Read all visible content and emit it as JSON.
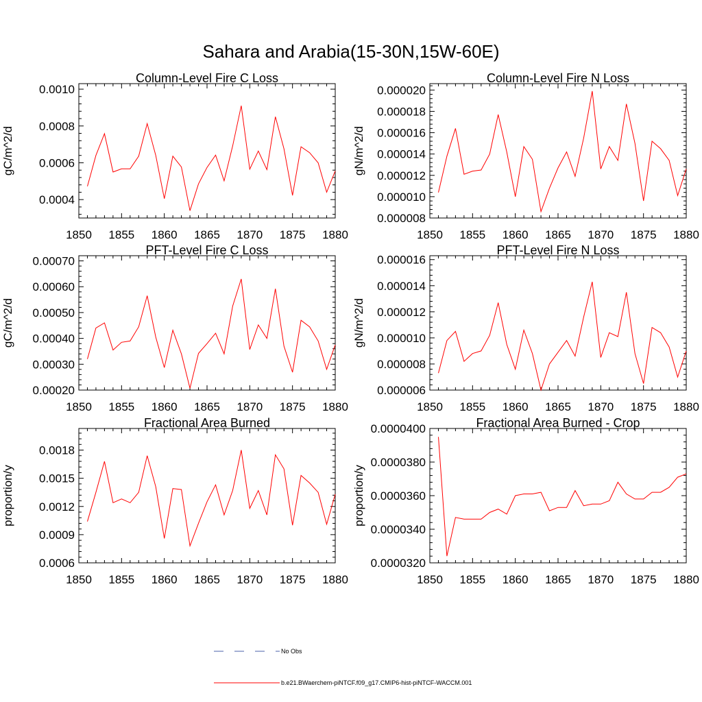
{
  "figure": {
    "title": "Sahara and Arabia(15-30N,15W-60E)"
  },
  "legend": {
    "obs_label": "No Obs",
    "obs_color": "#4a5fa8",
    "model_label": "b.e21.BWaerchem-piNTCF.f09_g17.CMIP6-hist-piNTCF-WACCM.001",
    "model_color": "#ff0000"
  },
  "chart_data": [
    {
      "type": "line",
      "title": "Column-Level Fire C Loss",
      "xlabel": "",
      "ylabel": "gC/m^2/d",
      "xlim": [
        1850,
        1880
      ],
      "ylim": [
        0.0003,
        0.00103
      ],
      "x_ticks": [
        1850,
        1855,
        1860,
        1865,
        1870,
        1875,
        1880
      ],
      "x_tick_labels": [
        "1850",
        "1855",
        "1860",
        "1865",
        "1870",
        "1875",
        "1880"
      ],
      "y_ticks": [
        0.0004,
        0.0006,
        0.0008,
        0.001
      ],
      "y_tick_labels": [
        "0.0004",
        "0.0006",
        "0.0008",
        "0.0010"
      ],
      "grid": false,
      "x": [
        1851,
        1852,
        1853,
        1854,
        1855,
        1856,
        1857,
        1858,
        1859,
        1860,
        1861,
        1862,
        1863,
        1864,
        1865,
        1866,
        1867,
        1868,
        1869,
        1870,
        1871,
        1872,
        1873,
        1874,
        1875,
        1876,
        1877,
        1878,
        1879,
        1880
      ],
      "series": [
        {
          "color": "#ff0000",
          "values": [
            0.000472,
            0.00064,
            0.000758,
            0.00055,
            0.000567,
            0.000567,
            0.000636,
            0.000813,
            0.00064,
            0.000405,
            0.000636,
            0.000577,
            0.00034,
            0.000485,
            0.000575,
            0.000642,
            0.000502,
            0.000692,
            0.00091,
            0.000565,
            0.000664,
            0.000563,
            0.00085,
            0.000676,
            0.000423,
            0.000687,
            0.000655,
            0.0006,
            0.00044,
            0.000556
          ]
        }
      ]
    },
    {
      "type": "line",
      "title": "Column-Level Fire N Loss",
      "xlabel": "",
      "ylabel": "gN/m^2/d",
      "xlim": [
        1850,
        1880
      ],
      "ylim": [
        8e-06,
        2.06e-05
      ],
      "x_ticks": [
        1850,
        1855,
        1860,
        1865,
        1870,
        1875,
        1880
      ],
      "x_tick_labels": [
        "1850",
        "1855",
        "1860",
        "1865",
        "1870",
        "1875",
        "1880"
      ],
      "y_ticks": [
        8e-06,
        1e-05,
        1.2e-05,
        1.4e-05,
        1.6e-05,
        1.8e-05,
        2e-05
      ],
      "y_tick_labels": [
        "0.000008",
        "0.000010",
        "0.000012",
        "0.000014",
        "0.000016",
        "0.000018",
        "0.000020"
      ],
      "grid": false,
      "x": [
        1851,
        1852,
        1853,
        1854,
        1855,
        1856,
        1857,
        1858,
        1859,
        1860,
        1861,
        1862,
        1863,
        1864,
        1865,
        1866,
        1867,
        1868,
        1869,
        1870,
        1871,
        1872,
        1873,
        1874,
        1875,
        1876,
        1877,
        1878,
        1879,
        1880
      ],
      "series": [
        {
          "color": "#ff0000",
          "values": [
            1.04e-05,
            1.38e-05,
            1.64e-05,
            1.21e-05,
            1.24e-05,
            1.25e-05,
            1.4e-05,
            1.77e-05,
            1.42e-05,
            1e-05,
            1.47e-05,
            1.35e-05,
            8.6e-06,
            1.08e-05,
            1.27e-05,
            1.42e-05,
            1.19e-05,
            1.55e-05,
            1.99e-05,
            1.26e-05,
            1.47e-05,
            1.34e-05,
            1.87e-05,
            1.5e-05,
            9.6e-06,
            1.52e-05,
            1.45e-05,
            1.34e-05,
            1.01e-05,
            1.26e-05
          ]
        }
      ]
    },
    {
      "type": "line",
      "title": "PFT-Level Fire C Loss",
      "xlabel": "",
      "ylabel": "gC/m^2/d",
      "xlim": [
        1850,
        1880
      ],
      "ylim": [
        0.0002,
        0.00072
      ],
      "x_ticks": [
        1850,
        1855,
        1860,
        1865,
        1870,
        1875,
        1880
      ],
      "x_tick_labels": [
        "1850",
        "1855",
        "1860",
        "1865",
        "1870",
        "1875",
        "1880"
      ],
      "y_ticks": [
        0.0002,
        0.0003,
        0.0004,
        0.0005,
        0.0006,
        0.0007
      ],
      "y_tick_labels": [
        "0.00020",
        "0.00030",
        "0.00040",
        "0.00050",
        "0.00060",
        "0.00070"
      ],
      "grid": false,
      "x": [
        1851,
        1852,
        1853,
        1854,
        1855,
        1856,
        1857,
        1858,
        1859,
        1860,
        1861,
        1862,
        1863,
        1864,
        1865,
        1866,
        1867,
        1868,
        1869,
        1870,
        1871,
        1872,
        1873,
        1874,
        1875,
        1876,
        1877,
        1878,
        1879,
        1880
      ],
      "series": [
        {
          "color": "#ff0000",
          "values": [
            0.00032,
            0.00044,
            0.00046,
            0.000355,
            0.000385,
            0.00039,
            0.000445,
            0.000565,
            0.000405,
            0.000287,
            0.000432,
            0.00034,
            0.000207,
            0.000342,
            0.00038,
            0.00042,
            0.00034,
            0.000525,
            0.00063,
            0.000357,
            0.000452,
            0.0004,
            0.000592,
            0.00037,
            0.000269,
            0.00047,
            0.000445,
            0.00039,
            0.00028,
            0.000375
          ]
        }
      ]
    },
    {
      "type": "line",
      "title": "PFT-Level Fire N Loss",
      "xlabel": "",
      "ylabel": "gN/m^2/d",
      "xlim": [
        1850,
        1880
      ],
      "ylim": [
        6e-06,
        1.63e-05
      ],
      "x_ticks": [
        1850,
        1855,
        1860,
        1865,
        1870,
        1875,
        1880
      ],
      "x_tick_labels": [
        "1850",
        "1855",
        "1860",
        "1865",
        "1870",
        "1875",
        "1880"
      ],
      "y_ticks": [
        6e-06,
        8e-06,
        1e-05,
        1.2e-05,
        1.4e-05,
        1.6e-05
      ],
      "y_tick_labels": [
        "0.000006",
        "0.000008",
        "0.000010",
        "0.000012",
        "0.000014",
        "0.000016"
      ],
      "grid": false,
      "x": [
        1851,
        1852,
        1853,
        1854,
        1855,
        1856,
        1857,
        1858,
        1859,
        1860,
        1861,
        1862,
        1863,
        1864,
        1865,
        1866,
        1867,
        1868,
        1869,
        1870,
        1871,
        1872,
        1873,
        1874,
        1875,
        1876,
        1877,
        1878,
        1879,
        1880
      ],
      "series": [
        {
          "color": "#ff0000",
          "values": [
            7.3e-06,
            9.8e-06,
            1.05e-05,
            8.2e-06,
            8.8e-06,
            9e-06,
            1.02e-05,
            1.27e-05,
            9.5e-06,
            7.6e-06,
            1.06e-05,
            8.8e-06,
            6e-06,
            8e-06,
            8.9e-06,
            9.8e-06,
            8.6e-06,
            1.16e-05,
            1.43e-05,
            8.5e-06,
            1.04e-05,
            1.01e-05,
            1.35e-05,
            8.8e-06,
            6.5e-06,
            1.08e-05,
            1.04e-05,
            9.3e-06,
            7e-06,
            9e-06
          ]
        }
      ]
    },
    {
      "type": "line",
      "title": "Fractional Area Burned",
      "xlabel": "",
      "ylabel": "proportion/y",
      "xlim": [
        1850,
        1880
      ],
      "ylim": [
        0.0006,
        0.00203
      ],
      "x_ticks": [
        1850,
        1855,
        1860,
        1865,
        1870,
        1875,
        1880
      ],
      "x_tick_labels": [
        "1850",
        "1855",
        "1860",
        "1865",
        "1870",
        "1875",
        "1880"
      ],
      "y_ticks": [
        0.0006,
        0.0009,
        0.0012,
        0.0015,
        0.0018
      ],
      "y_tick_labels": [
        "0.0006",
        "0.0009",
        "0.0012",
        "0.0015",
        "0.0018"
      ],
      "grid": false,
      "x": [
        1851,
        1852,
        1853,
        1854,
        1855,
        1856,
        1857,
        1858,
        1859,
        1860,
        1861,
        1862,
        1863,
        1864,
        1865,
        1866,
        1867,
        1868,
        1869,
        1870,
        1871,
        1872,
        1873,
        1874,
        1875,
        1876,
        1877,
        1878,
        1879,
        1880
      ],
      "series": [
        {
          "color": "#ff0000",
          "values": [
            0.00104,
            0.00135,
            0.00168,
            0.00124,
            0.00128,
            0.00124,
            0.00135,
            0.00174,
            0.00141,
            0.00086,
            0.00139,
            0.00138,
            0.00078,
            0.00102,
            0.00125,
            0.00143,
            0.00111,
            0.00137,
            0.0018,
            0.00118,
            0.00137,
            0.00111,
            0.00175,
            0.0016,
            0.001,
            0.00153,
            0.00145,
            0.00135,
            0.00101,
            0.00133
          ]
        }
      ]
    },
    {
      "type": "line",
      "title": "Fractional Area Burned - Crop",
      "xlabel": "",
      "ylabel": "proportion/y",
      "xlim": [
        1850,
        1880
      ],
      "ylim": [
        3.2e-05,
        4e-05
      ],
      "x_ticks": [
        1850,
        1855,
        1860,
        1865,
        1870,
        1875,
        1880
      ],
      "x_tick_labels": [
        "1850",
        "1855",
        "1860",
        "1865",
        "1870",
        "1875",
        "1880"
      ],
      "y_ticks": [
        3.2e-05,
        3.4e-05,
        3.6e-05,
        3.8e-05,
        4e-05
      ],
      "y_tick_labels": [
        "0.0000320",
        "0.0000340",
        "0.0000360",
        "0.0000380",
        "0.0000400"
      ],
      "grid": false,
      "x": [
        1851,
        1852,
        1853,
        1854,
        1855,
        1856,
        1857,
        1858,
        1859,
        1860,
        1861,
        1862,
        1863,
        1864,
        1865,
        1866,
        1867,
        1868,
        1869,
        1870,
        1871,
        1872,
        1873,
        1874,
        1875,
        1876,
        1877,
        1878,
        1879,
        1880
      ],
      "series": [
        {
          "color": "#ff0000",
          "values": [
            3.95e-05,
            3.24e-05,
            3.47e-05,
            3.46e-05,
            3.46e-05,
            3.46e-05,
            3.5e-05,
            3.52e-05,
            3.49e-05,
            3.6e-05,
            3.61e-05,
            3.61e-05,
            3.62e-05,
            3.51e-05,
            3.53e-05,
            3.53e-05,
            3.63e-05,
            3.54e-05,
            3.55e-05,
            3.55e-05,
            3.57e-05,
            3.68e-05,
            3.61e-05,
            3.58e-05,
            3.58e-05,
            3.62e-05,
            3.62e-05,
            3.65e-05,
            3.71e-05,
            3.73e-05
          ]
        }
      ]
    }
  ]
}
